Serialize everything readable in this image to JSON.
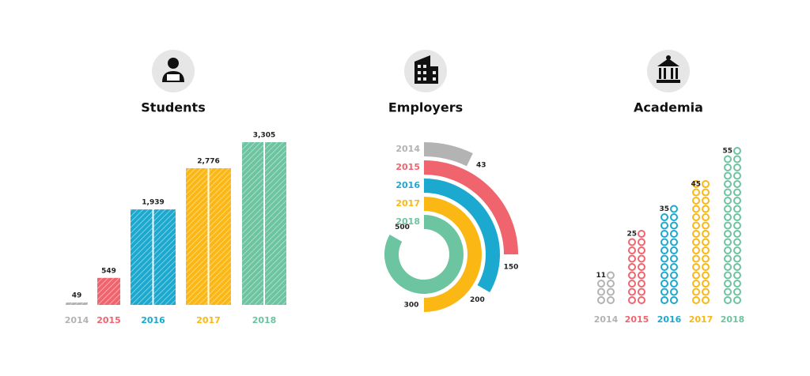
{
  "chart_data": [
    {
      "type": "bar",
      "title": "Students",
      "categories": [
        "2014",
        "2015",
        "2016",
        "2017",
        "2018"
      ],
      "values": [
        49,
        549,
        1939,
        2776,
        3305
      ],
      "value_labels": [
        "49",
        "549",
        "1,939",
        "2,776",
        "3,305"
      ],
      "colors": [
        "#b3b3b3",
        "#f0646e",
        "#1ba9cf",
        "#fbb713",
        "#6cc4a0"
      ]
    },
    {
      "type": "radial-bar",
      "title": "Employers",
      "categories": [
        "2014",
        "2015",
        "2016",
        "2017",
        "2018"
      ],
      "values": [
        43,
        150,
        200,
        300,
        500
      ],
      "colors": [
        "#b3b3b3",
        "#f0646e",
        "#1ba9cf",
        "#fbb713",
        "#6cc4a0"
      ]
    },
    {
      "type": "pictograph",
      "title": "Academia",
      "categories": [
        "2014",
        "2015",
        "2016",
        "2017",
        "2018"
      ],
      "values": [
        11,
        25,
        35,
        45,
        55
      ],
      "colors": [
        "#b3b3b3",
        "#f0646e",
        "#1ba9cf",
        "#fbb713",
        "#6cc4a0"
      ]
    }
  ]
}
